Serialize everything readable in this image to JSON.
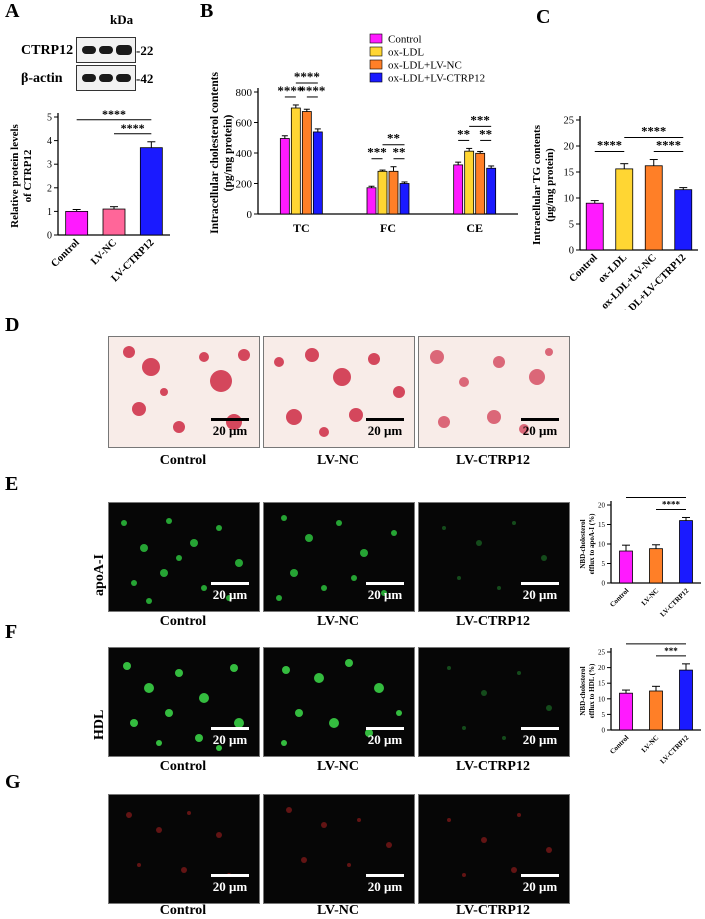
{
  "panels": {
    "a": "A",
    "b": "B",
    "c": "C",
    "d": "D",
    "e": "E",
    "f": "F",
    "g": "G"
  },
  "blot": {
    "kda": "kDa",
    "rows": [
      {
        "label": "CTRP12",
        "size": "-22"
      },
      {
        "label": "β-actin",
        "size": "-42"
      }
    ]
  },
  "images": {
    "scale_label": "20 μm",
    "captions": [
      "Control",
      "LV-NC",
      "LV-CTRP12"
    ],
    "row_labels": {
      "e": "apoA-I",
      "f": "HDL"
    }
  },
  "chart_data": [
    {
      "id": "A",
      "type": "bar",
      "categories": [
        "Control",
        "LV-NC",
        "LV-CTRP12"
      ],
      "values": [
        1.0,
        1.1,
        3.7
      ],
      "errors": [
        0.08,
        0.1,
        0.25
      ],
      "colors": [
        "#ff1aff",
        "#ff6699",
        "#1a1aff"
      ],
      "ylabel": [
        "Relative protein levels",
        "of CTRP12"
      ],
      "ylim": [
        0,
        5
      ],
      "yticks": [
        0,
        1,
        2,
        3,
        4,
        5
      ],
      "significance": [
        {
          "from": 0,
          "to": 2,
          "label": "****",
          "level": 1
        },
        {
          "from": 1,
          "to": 2,
          "label": "****",
          "level": 0
        }
      ]
    },
    {
      "id": "B",
      "type": "bar",
      "categories": [
        "TC",
        "FC",
        "CE"
      ],
      "series": [
        {
          "name": "Control",
          "color": "#ff1aff",
          "values": [
            495,
            172,
            322
          ],
          "errors": [
            18,
            10,
            18
          ]
        },
        {
          "name": "ox-LDL",
          "color": "#ffd633",
          "values": [
            695,
            280,
            412
          ],
          "errors": [
            20,
            8,
            18
          ]
        },
        {
          "name": "ox-LDL+LV-NC",
          "color": "#ff7f27",
          "values": [
            672,
            280,
            398
          ],
          "errors": [
            15,
            30,
            12
          ]
        },
        {
          "name": "ox-LDL+LV-CTRP12",
          "color": "#1a1aff",
          "values": [
            538,
            200,
            300
          ],
          "errors": [
            20,
            10,
            15
          ]
        }
      ],
      "ylabel": [
        "Intracellular cholesterol contents",
        "(pg/mg protein)"
      ],
      "ylim": [
        0,
        800
      ],
      "yticks": [
        0,
        200,
        400,
        600,
        800
      ],
      "significance": [
        {
          "group": 0,
          "from": 0,
          "to": 1,
          "label": "****",
          "level": 0
        },
        {
          "group": 0,
          "from": 2,
          "to": 3,
          "label": "****",
          "level": 0
        },
        {
          "group": 0,
          "from": 1,
          "to": 3,
          "label": "****",
          "level": 1
        },
        {
          "group": 1,
          "from": 0,
          "to": 1,
          "label": "***",
          "level": 0
        },
        {
          "group": 1,
          "from": 2,
          "to": 3,
          "label": "**",
          "level": 0
        },
        {
          "group": 1,
          "from": 1,
          "to": 3,
          "label": "**",
          "level": 1
        },
        {
          "group": 2,
          "from": 0,
          "to": 1,
          "label": "**",
          "level": 0
        },
        {
          "group": 2,
          "from": 2,
          "to": 3,
          "label": "**",
          "level": 0
        },
        {
          "group": 2,
          "from": 1,
          "to": 3,
          "label": "***",
          "level": 1
        }
      ]
    },
    {
      "id": "C",
      "type": "bar",
      "categories": [
        "Control",
        "ox-LDL",
        "ox-LDL+LV-NC",
        "ox-LDL+LV-CTRP12"
      ],
      "values": [
        9.0,
        15.6,
        16.2,
        11.6
      ],
      "errors": [
        0.5,
        1.0,
        1.2,
        0.4
      ],
      "colors": [
        "#ff1aff",
        "#ffd633",
        "#ff7f27",
        "#1a1aff"
      ],
      "ylabel": [
        "Intracellular TG contents",
        "(μg/mg protein)"
      ],
      "ylim": [
        0,
        25
      ],
      "yticks": [
        0,
        5,
        10,
        15,
        20,
        25
      ],
      "significance": [
        {
          "from": 0,
          "to": 1,
          "label": "****",
          "level": 0
        },
        {
          "from": 2,
          "to": 3,
          "label": "****",
          "level": 0
        },
        {
          "from": 1,
          "to": 3,
          "label": "****",
          "level": 1
        }
      ]
    },
    {
      "id": "E",
      "type": "bar",
      "categories": [
        "Control",
        "LV-NC",
        "LV-CTRP12"
      ],
      "values": [
        8.2,
        8.8,
        16.0
      ],
      "errors": [
        1.5,
        1.0,
        0.8
      ],
      "colors": [
        "#ff1aff",
        "#ff7f27",
        "#1a1aff"
      ],
      "ylabel": [
        "NBD-cholesterol",
        "efflux to apoA-I (%)"
      ],
      "ylim": [
        0,
        20
      ],
      "yticks": [
        0,
        5,
        10,
        15,
        20
      ],
      "significance": [
        {
          "from": 0,
          "to": 2,
          "label": "****",
          "level": 1
        },
        {
          "from": 1,
          "to": 2,
          "label": "****",
          "level": 0
        }
      ]
    },
    {
      "id": "F",
      "type": "bar",
      "categories": [
        "Control",
        "LV-NC",
        "LV-CTRP12"
      ],
      "values": [
        11.8,
        12.5,
        19.2
      ],
      "errors": [
        1.0,
        1.5,
        2.0
      ],
      "colors": [
        "#ff1aff",
        "#ff7f27",
        "#1a1aff"
      ],
      "ylabel": [
        "NBD-cholesterol",
        "efflux to HDL (%)"
      ],
      "ylim": [
        0,
        25
      ],
      "yticks": [
        0,
        5,
        10,
        15,
        20,
        25
      ],
      "significance": [
        {
          "from": 0,
          "to": 2,
          "label": "***",
          "level": 1
        },
        {
          "from": 1,
          "to": 2,
          "label": "***",
          "level": 0
        }
      ]
    }
  ]
}
